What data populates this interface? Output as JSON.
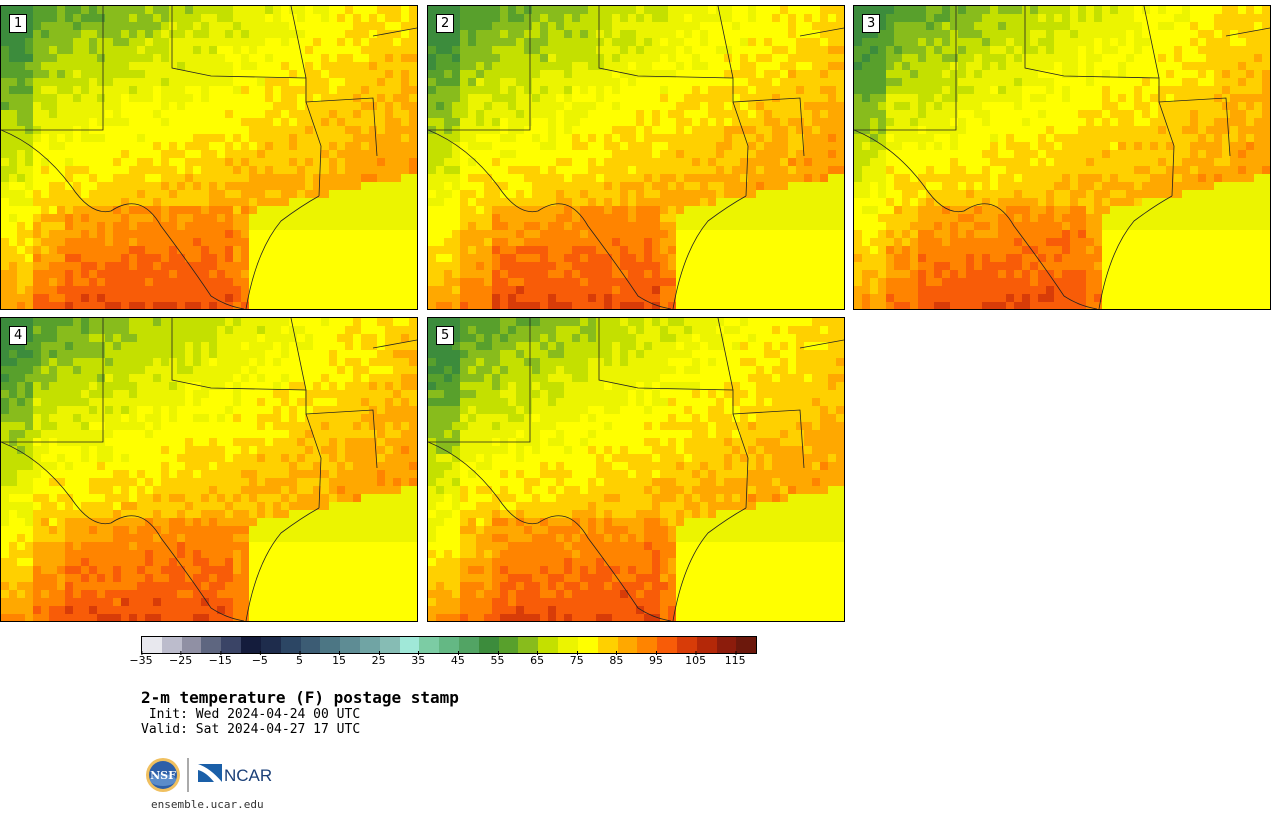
{
  "panels": [
    {
      "label": "1"
    },
    {
      "label": "2"
    },
    {
      "label": "3"
    },
    {
      "label": "4"
    },
    {
      "label": "5"
    }
  ],
  "colorbar": {
    "colors": [
      "#e8e8ee",
      "#bcbccc",
      "#9090a4",
      "#5e6680",
      "#3a4466",
      "#141c3c",
      "#1e2c4c",
      "#2c4664",
      "#3c5c74",
      "#4c7684",
      "#5e8c94",
      "#70a4a4",
      "#86bcb4",
      "#a0e8d8",
      "#7ccca4",
      "#64b884",
      "#52a464",
      "#3c8c3c",
      "#58a02c",
      "#88bc1c",
      "#c4e000",
      "#ecf400",
      "#ffff00",
      "#ffd000",
      "#ffa800",
      "#ff8400",
      "#f85c08",
      "#d83c08",
      "#b42808",
      "#8c1c0c",
      "#6c180c"
    ],
    "ticks": [
      "−35",
      "−25",
      "−15",
      "−5",
      "5",
      "15",
      "25",
      "35",
      "45",
      "55",
      "65",
      "75",
      "85",
      "95",
      "105",
      "115"
    ]
  },
  "title": "2-m temperature (F) postage stamp",
  "init": " Init: Wed 2024-04-24 00 UTC",
  "valid": "Valid: Sat 2024-04-27 17 UTC",
  "logos": {
    "nsf": "NSF",
    "ncar": "NCAR"
  },
  "site": "ensemble.ucar.edu"
}
